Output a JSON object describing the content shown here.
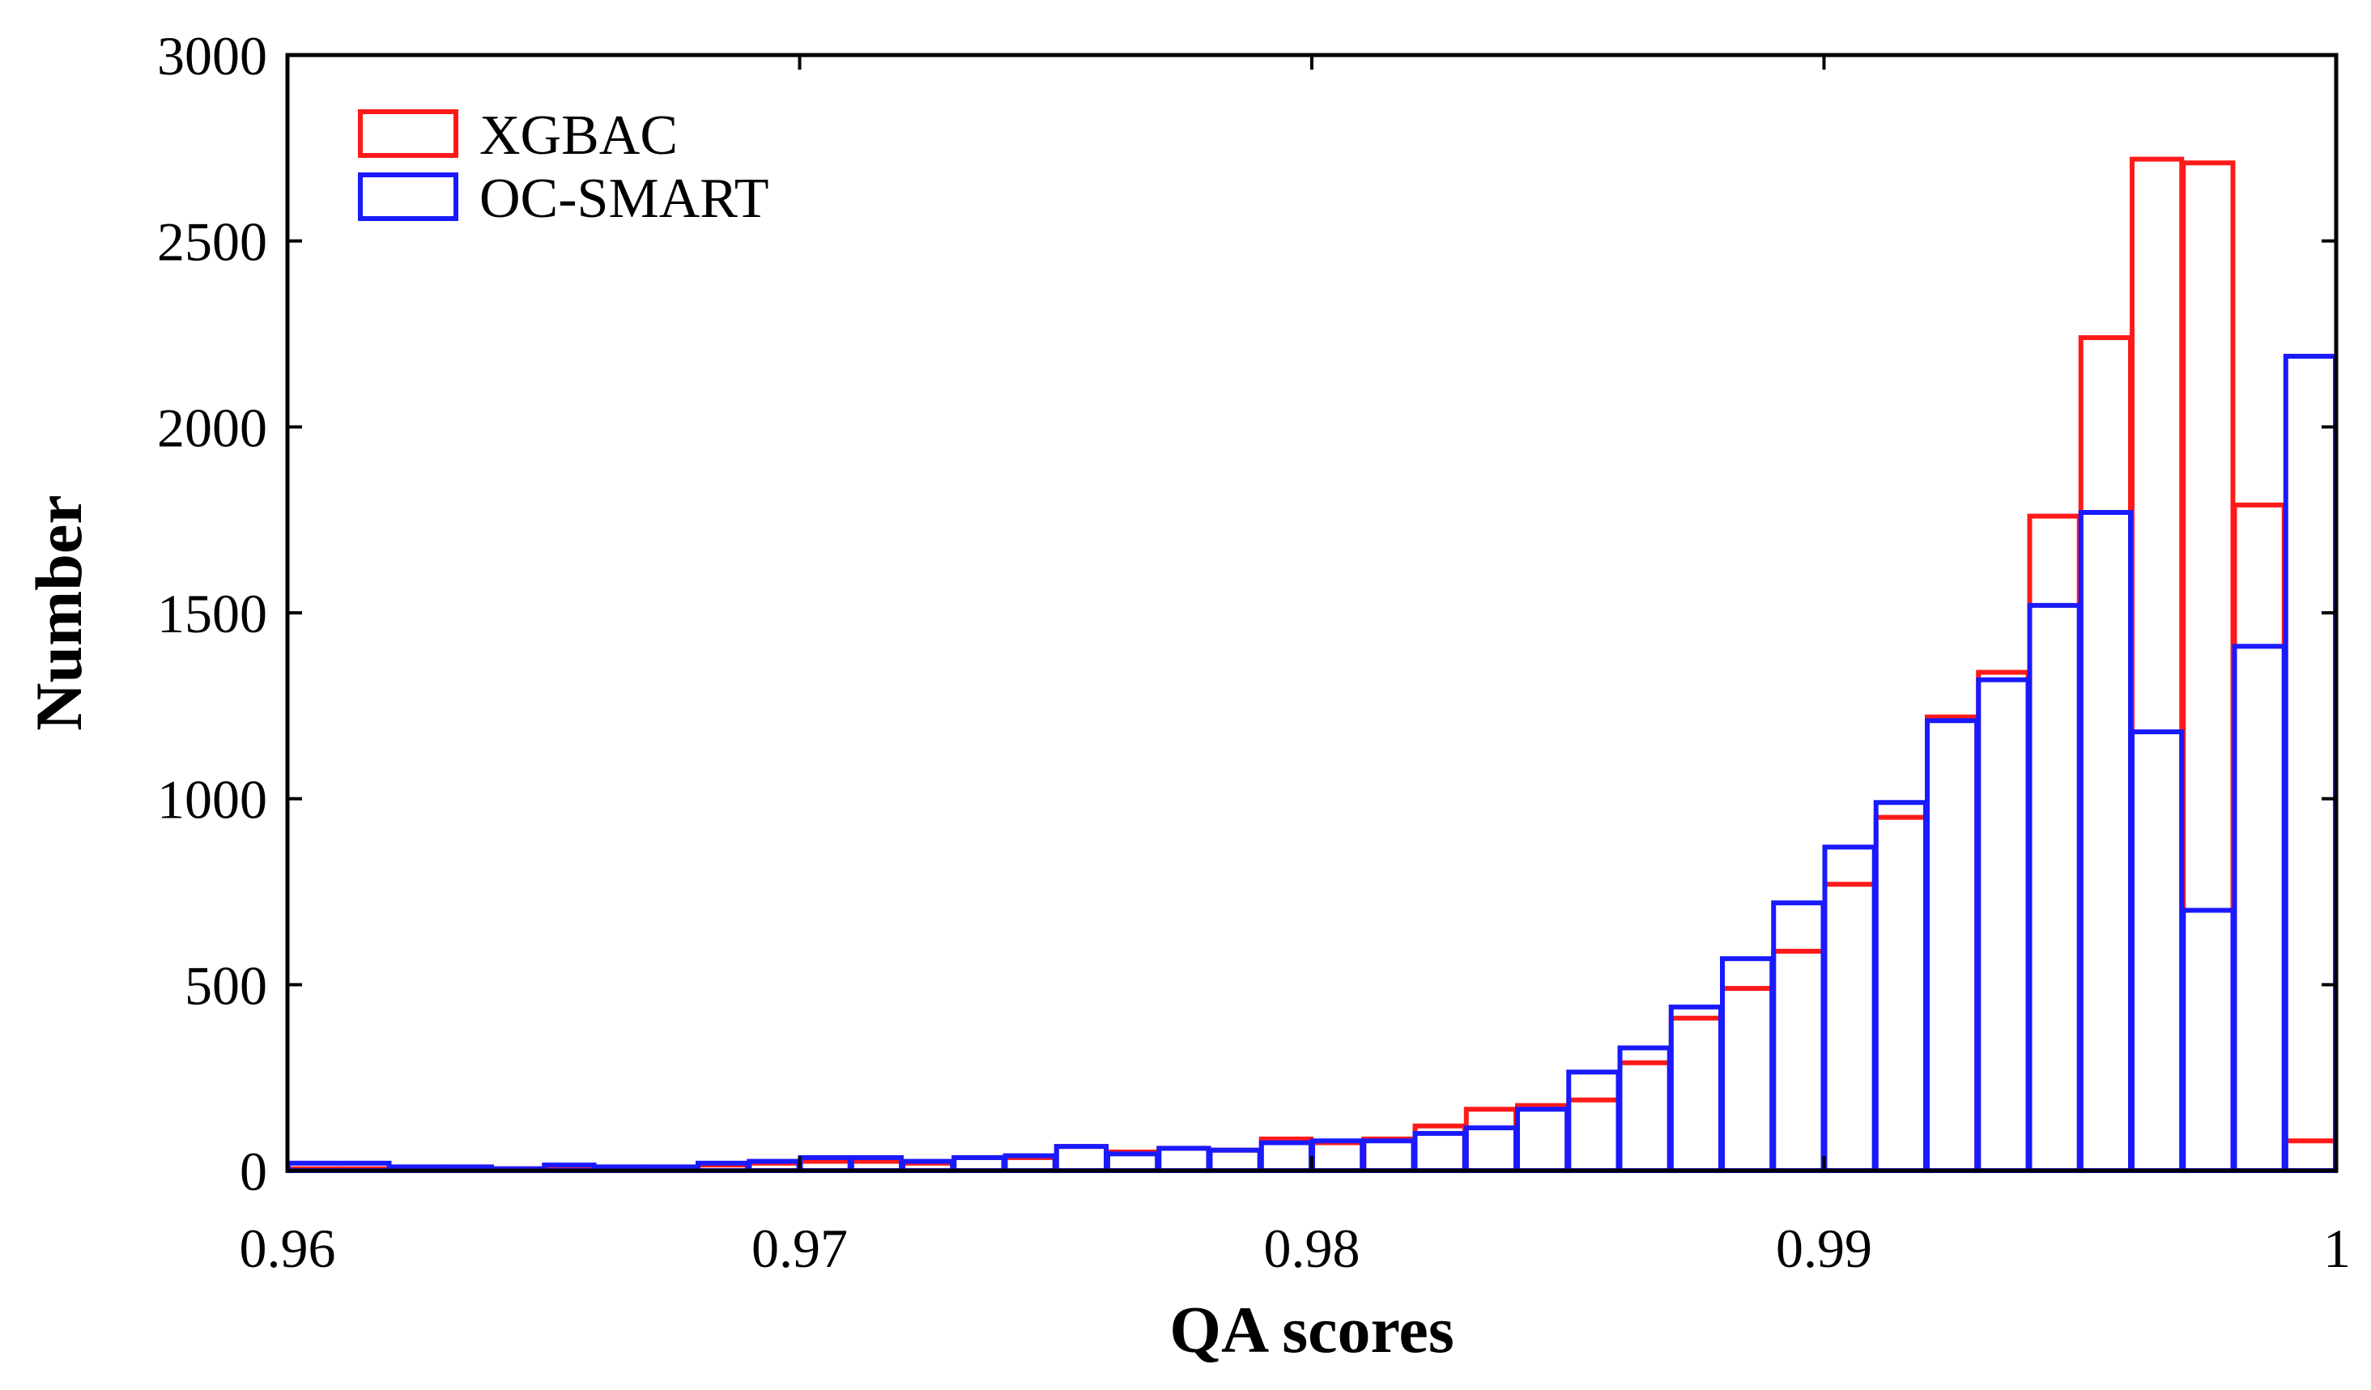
{
  "chart_data": {
    "type": "bar",
    "subtype": "overlapping-step-histogram",
    "title": "",
    "xlabel": "QA scores",
    "ylabel": "Number",
    "xlim": [
      0.96,
      1.0
    ],
    "ylim": [
      0,
      3000
    ],
    "xticks": [
      "0.96",
      "0.97",
      "0.98",
      "0.99",
      "1"
    ],
    "yticks": [
      "0",
      "500",
      "1000",
      "1500",
      "2000",
      "2500",
      "3000"
    ],
    "legend_position": "top-left",
    "grid": false,
    "series": [
      {
        "name": "XGBAC",
        "color": "#ff1a1a",
        "bins": [
          {
            "x0": 0.96,
            "x1": 0.961,
            "value": 5
          },
          {
            "x0": 0.961,
            "x1": 0.962,
            "value": 5
          },
          {
            "x0": 0.962,
            "x1": 0.963,
            "value": 3
          },
          {
            "x0": 0.963,
            "x1": 0.964,
            "value": 3
          },
          {
            "x0": 0.964,
            "x1": 0.965,
            "value": 5
          },
          {
            "x0": 0.965,
            "x1": 0.966,
            "value": 2
          },
          {
            "x0": 0.966,
            "x1": 0.967,
            "value": 5
          },
          {
            "x0": 0.967,
            "x1": 0.968,
            "value": 5
          },
          {
            "x0": 0.968,
            "x1": 0.969,
            "value": 15
          },
          {
            "x0": 0.969,
            "x1": 0.97,
            "value": 20
          },
          {
            "x0": 0.97,
            "x1": 0.971,
            "value": 25
          },
          {
            "x0": 0.971,
            "x1": 0.972,
            "value": 25
          },
          {
            "x0": 0.972,
            "x1": 0.973,
            "value": 20
          },
          {
            "x0": 0.973,
            "x1": 0.974,
            "value": 35
          },
          {
            "x0": 0.974,
            "x1": 0.975,
            "value": 35
          },
          {
            "x0": 0.975,
            "x1": 0.976,
            "value": 65
          },
          {
            "x0": 0.976,
            "x1": 0.977,
            "value": 50
          },
          {
            "x0": 0.977,
            "x1": 0.978,
            "value": 60
          },
          {
            "x0": 0.978,
            "x1": 0.979,
            "value": 55
          },
          {
            "x0": 0.979,
            "x1": 0.98,
            "value": 85
          },
          {
            "x0": 0.98,
            "x1": 0.981,
            "value": 75
          },
          {
            "x0": 0.981,
            "x1": 0.982,
            "value": 85
          },
          {
            "x0": 0.982,
            "x1": 0.983,
            "value": 120
          },
          {
            "x0": 0.983,
            "x1": 0.984,
            "value": 165
          },
          {
            "x0": 0.984,
            "x1": 0.985,
            "value": 175
          },
          {
            "x0": 0.985,
            "x1": 0.986,
            "value": 190
          },
          {
            "x0": 0.986,
            "x1": 0.987,
            "value": 290
          },
          {
            "x0": 0.987,
            "x1": 0.988,
            "value": 410
          },
          {
            "x0": 0.988,
            "x1": 0.989,
            "value": 490
          },
          {
            "x0": 0.989,
            "x1": 0.99,
            "value": 590
          },
          {
            "x0": 0.99,
            "x1": 0.991,
            "value": 770
          },
          {
            "x0": 0.991,
            "x1": 0.992,
            "value": 950
          },
          {
            "x0": 0.992,
            "x1": 0.993,
            "value": 1220
          },
          {
            "x0": 0.993,
            "x1": 0.994,
            "value": 1340
          },
          {
            "x0": 0.994,
            "x1": 0.995,
            "value": 1760
          },
          {
            "x0": 0.995,
            "x1": 0.996,
            "value": 2240
          },
          {
            "x0": 0.996,
            "x1": 0.997,
            "value": 2720
          },
          {
            "x0": 0.997,
            "x1": 0.998,
            "value": 2710
          },
          {
            "x0": 0.998,
            "x1": 0.999,
            "value": 1790
          },
          {
            "x0": 0.999,
            "x1": 1.0,
            "value": 80
          }
        ]
      },
      {
        "name": "OC-SMART",
        "color": "#1a1aff",
        "bins": [
          {
            "x0": 0.96,
            "x1": 0.962,
            "value": 20
          },
          {
            "x0": 0.962,
            "x1": 0.963,
            "value": 10
          },
          {
            "x0": 0.963,
            "x1": 0.964,
            "value": 10
          },
          {
            "x0": 0.964,
            "x1": 0.965,
            "value": 5
          },
          {
            "x0": 0.965,
            "x1": 0.966,
            "value": 15
          },
          {
            "x0": 0.966,
            "x1": 0.967,
            "value": 10
          },
          {
            "x0": 0.967,
            "x1": 0.968,
            "value": 10
          },
          {
            "x0": 0.968,
            "x1": 0.969,
            "value": 20
          },
          {
            "x0": 0.969,
            "x1": 0.97,
            "value": 25
          },
          {
            "x0": 0.97,
            "x1": 0.971,
            "value": 35
          },
          {
            "x0": 0.971,
            "x1": 0.972,
            "value": 35
          },
          {
            "x0": 0.972,
            "x1": 0.973,
            "value": 25
          },
          {
            "x0": 0.973,
            "x1": 0.974,
            "value": 35
          },
          {
            "x0": 0.974,
            "x1": 0.975,
            "value": 40
          },
          {
            "x0": 0.975,
            "x1": 0.976,
            "value": 65
          },
          {
            "x0": 0.976,
            "x1": 0.977,
            "value": 45
          },
          {
            "x0": 0.977,
            "x1": 0.978,
            "value": 60
          },
          {
            "x0": 0.978,
            "x1": 0.979,
            "value": 55
          },
          {
            "x0": 0.979,
            "x1": 0.98,
            "value": 75
          },
          {
            "x0": 0.98,
            "x1": 0.981,
            "value": 80
          },
          {
            "x0": 0.981,
            "x1": 0.982,
            "value": 80
          },
          {
            "x0": 0.982,
            "x1": 0.983,
            "value": 100
          },
          {
            "x0": 0.983,
            "x1": 0.984,
            "value": 115
          },
          {
            "x0": 0.984,
            "x1": 0.985,
            "value": 165
          },
          {
            "x0": 0.985,
            "x1": 0.986,
            "value": 265
          },
          {
            "x0": 0.986,
            "x1": 0.987,
            "value": 330
          },
          {
            "x0": 0.987,
            "x1": 0.988,
            "value": 440
          },
          {
            "x0": 0.988,
            "x1": 0.989,
            "value": 570
          },
          {
            "x0": 0.989,
            "x1": 0.99,
            "value": 720
          },
          {
            "x0": 0.99,
            "x1": 0.991,
            "value": 870
          },
          {
            "x0": 0.991,
            "x1": 0.992,
            "value": 990
          },
          {
            "x0": 0.992,
            "x1": 0.993,
            "value": 1210
          },
          {
            "x0": 0.993,
            "x1": 0.994,
            "value": 1320
          },
          {
            "x0": 0.994,
            "x1": 0.995,
            "value": 1520
          },
          {
            "x0": 0.995,
            "x1": 0.996,
            "value": 1770
          },
          {
            "x0": 0.996,
            "x1": 0.997,
            "value": 1180
          },
          {
            "x0": 0.997,
            "x1": 0.998,
            "value": 700
          },
          {
            "x0": 0.998,
            "x1": 0.999,
            "value": 1410
          },
          {
            "x0": 0.999,
            "x1": 1.0,
            "value": 2190
          }
        ]
      }
    ]
  }
}
